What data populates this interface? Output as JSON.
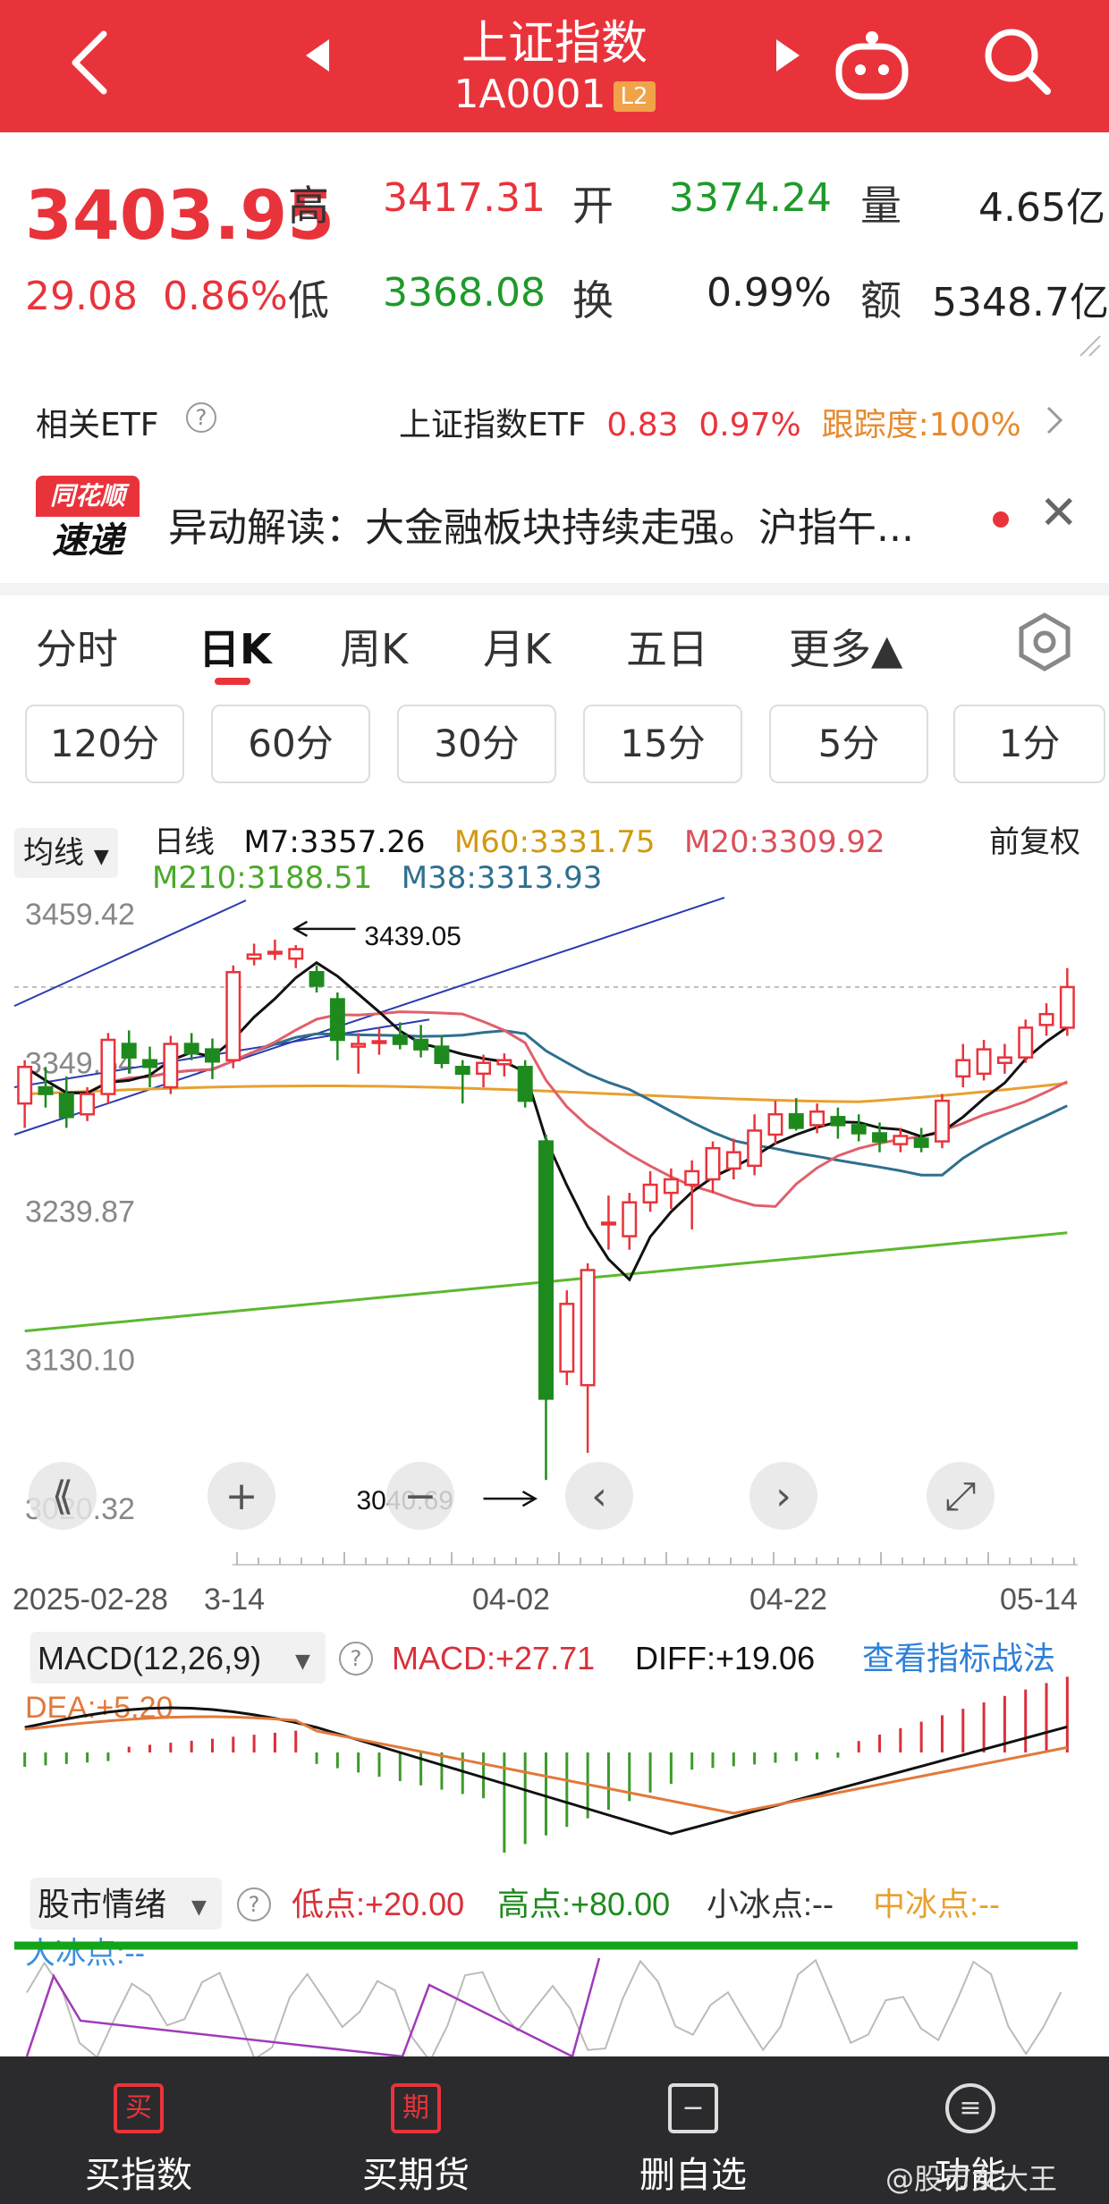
{
  "header": {
    "title": "上证指数",
    "code": "1A0001",
    "badge": "L2"
  },
  "quote": {
    "price": "3403.95",
    "change": "29.08",
    "change_pct": "0.86%",
    "labels": {
      "high": "高",
      "low": "低",
      "open": "开",
      "turnover": "换",
      "volume": "量",
      "amount": "额"
    },
    "high": "3417.31",
    "low": "3368.08",
    "open": "3374.24",
    "turnover": "0.99%",
    "volume": "4.65亿",
    "amount": "5348.7亿"
  },
  "etf": {
    "label": "相关ETF",
    "name": "上证指数ETF",
    "price": "0.83",
    "pct": "0.97%",
    "tracking": "跟踪度:100%"
  },
  "news": {
    "logo_top": "同花顺",
    "logo_bottom": "速递",
    "text": "异动解读：大金融板块持续走强。沪指午..."
  },
  "tabs": [
    "分时",
    "日K",
    "周K",
    "月K",
    "五日",
    "更多▲"
  ],
  "periods": [
    "120分",
    "60分",
    "30分",
    "15分",
    "5分",
    "1分"
  ],
  "kline": {
    "ma_selector": "均线",
    "interval": "日线",
    "adjust": "前复权",
    "ma": {
      "m7": "M7:3357.26",
      "m60": "M60:3331.75",
      "m20": "M20:3309.92",
      "m210": "M210:3188.51",
      "m38": "M38:3313.93"
    },
    "y_labels": [
      "3459.42",
      "3349.54",
      "3239.87",
      "3130.10",
      "3020.32"
    ],
    "high_mark": "3439.05",
    "low_mark": "3040.69",
    "x_labels": [
      "2025-02-28",
      "3-14",
      "04-02",
      "04-22",
      "05-14"
    ],
    "colors": {
      "up": "#e9333b",
      "down": "#1e8a1e",
      "m7": "#111111",
      "m20": "#e0606b",
      "m60": "#e8a030",
      "m38": "#2f6f8f",
      "m210": "#5cb82e",
      "channel": "#2a3bb0"
    }
  },
  "macd": {
    "title": "MACD(12,26,9)",
    "macd": "MACD:+27.71",
    "diff": "DIFF:+19.06",
    "dea": "DEA:+5.20",
    "link": "查看指标战法"
  },
  "sentiment": {
    "title": "股市情绪",
    "low": "低点:+20.00",
    "high": "高点:+80.00",
    "small_ice": "小冰点:--",
    "mid_ice": "中冰点:--",
    "big_ice": "大冰点:--"
  },
  "bottom_nav": [
    {
      "icon": "买",
      "label": "买指数"
    },
    {
      "icon": "期",
      "label": "买期货"
    },
    {
      "icon": "−",
      "label": "删自选"
    },
    {
      "icon": "≡",
      "label": "功能"
    }
  ],
  "watermark": "@股市女大王",
  "chart_data": {
    "type": "candlestick",
    "x_range": [
      "2025-02-28",
      "2025-05-14"
    ],
    "ylim": [
      3020.32,
      3459.42
    ],
    "y_ticks": [
      3459.42,
      3349.54,
      3239.87,
      3130.1,
      3020.32
    ],
    "annotations": [
      {
        "text": "3439.05",
        "note": "period high"
      },
      {
        "text": "3040.69",
        "note": "period low"
      }
    ],
    "candles": [
      {
        "o": 3318,
        "h": 3350,
        "l": 3300,
        "c": 3345
      },
      {
        "o": 3330,
        "h": 3345,
        "l": 3315,
        "c": 3325
      },
      {
        "o": 3325,
        "h": 3338,
        "l": 3300,
        "c": 3308
      },
      {
        "o": 3310,
        "h": 3330,
        "l": 3305,
        "c": 3325
      },
      {
        "o": 3325,
        "h": 3370,
        "l": 3318,
        "c": 3365
      },
      {
        "o": 3362,
        "h": 3372,
        "l": 3340,
        "c": 3352
      },
      {
        "o": 3350,
        "h": 3360,
        "l": 3330,
        "c": 3345
      },
      {
        "o": 3330,
        "h": 3368,
        "l": 3325,
        "c": 3362
      },
      {
        "o": 3362,
        "h": 3370,
        "l": 3350,
        "c": 3355
      },
      {
        "o": 3358,
        "h": 3366,
        "l": 3336,
        "c": 3349
      },
      {
        "o": 3350,
        "h": 3420,
        "l": 3344,
        "c": 3415
      },
      {
        "o": 3425,
        "h": 3436,
        "l": 3420,
        "c": 3428
      },
      {
        "o": 3430,
        "h": 3439,
        "l": 3424,
        "c": 3430
      },
      {
        "o": 3425,
        "h": 3435,
        "l": 3418,
        "c": 3432
      },
      {
        "o": 3415,
        "h": 3420,
        "l": 3400,
        "c": 3405
      },
      {
        "o": 3395,
        "h": 3400,
        "l": 3350,
        "c": 3365
      },
      {
        "o": 3360,
        "h": 3370,
        "l": 3340,
        "c": 3362
      },
      {
        "o": 3364,
        "h": 3374,
        "l": 3354,
        "c": 3364
      },
      {
        "o": 3368,
        "h": 3378,
        "l": 3358,
        "c": 3362
      },
      {
        "o": 3365,
        "h": 3376,
        "l": 3352,
        "c": 3358
      },
      {
        "o": 3360,
        "h": 3368,
        "l": 3344,
        "c": 3348
      },
      {
        "o": 3345,
        "h": 3350,
        "l": 3318,
        "c": 3340
      },
      {
        "o": 3340,
        "h": 3354,
        "l": 3330,
        "c": 3348
      },
      {
        "o": 3347,
        "h": 3355,
        "l": 3338,
        "c": 3350
      },
      {
        "o": 3345,
        "h": 3350,
        "l": 3315,
        "c": 3320
      },
      {
        "o": 3290,
        "h": 3295,
        "l": 3040,
        "c": 3100
      },
      {
        "o": 3120,
        "h": 3180,
        "l": 3110,
        "c": 3170
      },
      {
        "o": 3110,
        "h": 3200,
        "l": 3060,
        "c": 3195
      },
      {
        "o": 3230,
        "h": 3250,
        "l": 3210,
        "c": 3230
      },
      {
        "o": 3220,
        "h": 3252,
        "l": 3210,
        "c": 3245
      },
      {
        "o": 3245,
        "h": 3268,
        "l": 3238,
        "c": 3258
      },
      {
        "o": 3252,
        "h": 3270,
        "l": 3240,
        "c": 3262
      },
      {
        "o": 3258,
        "h": 3276,
        "l": 3225,
        "c": 3268
      },
      {
        "o": 3262,
        "h": 3290,
        "l": 3252,
        "c": 3285
      },
      {
        "o": 3270,
        "h": 3292,
        "l": 3262,
        "c": 3282
      },
      {
        "o": 3272,
        "h": 3310,
        "l": 3265,
        "c": 3298
      },
      {
        "o": 3295,
        "h": 3320,
        "l": 3288,
        "c": 3310
      },
      {
        "o": 3310,
        "h": 3322,
        "l": 3298,
        "c": 3300
      },
      {
        "o": 3302,
        "h": 3318,
        "l": 3296,
        "c": 3312
      },
      {
        "o": 3308,
        "h": 3315,
        "l": 3292,
        "c": 3302
      },
      {
        "o": 3302,
        "h": 3310,
        "l": 3290,
        "c": 3296
      },
      {
        "o": 3296,
        "h": 3304,
        "l": 3282,
        "c": 3290
      },
      {
        "o": 3288,
        "h": 3300,
        "l": 3282,
        "c": 3294
      },
      {
        "o": 3292,
        "h": 3300,
        "l": 3282,
        "c": 3286
      },
      {
        "o": 3290,
        "h": 3325,
        "l": 3285,
        "c": 3320
      },
      {
        "o": 3338,
        "h": 3362,
        "l": 3330,
        "c": 3350
      },
      {
        "o": 3340,
        "h": 3365,
        "l": 3335,
        "c": 3358
      },
      {
        "o": 3348,
        "h": 3362,
        "l": 3340,
        "c": 3352
      },
      {
        "o": 3352,
        "h": 3380,
        "l": 3348,
        "c": 3374
      },
      {
        "o": 3376,
        "h": 3392,
        "l": 3368,
        "c": 3384
      },
      {
        "o": 3374,
        "h": 3418,
        "l": 3368,
        "c": 3404
      }
    ],
    "macd": {
      "diff_last": 19.06,
      "dea_last": 5.2,
      "macd_last": 27.71
    }
  }
}
